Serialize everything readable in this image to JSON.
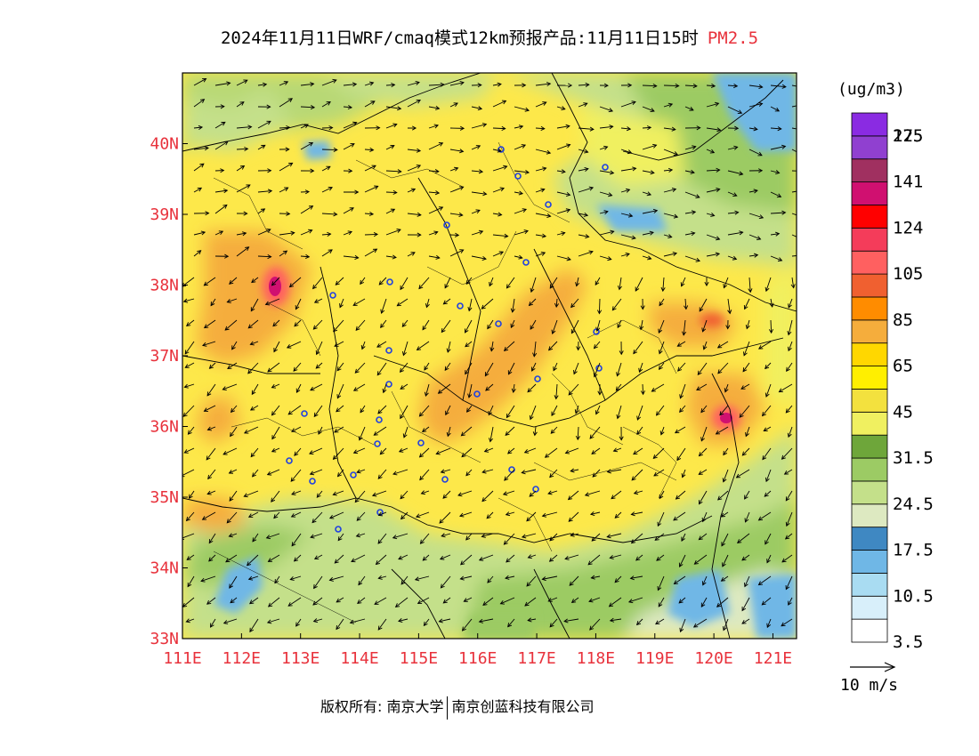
{
  "title": {
    "main": "2024年11月11日WRF/cmaq模式12km预报产品:11月11日15时",
    "pollutant": "PM2.5"
  },
  "map": {
    "lon_min": 111,
    "lon_max": 121.4,
    "lat_min": 33,
    "lat_max": 41,
    "lon_labels": [
      "111E",
      "112E",
      "113E",
      "114E",
      "115E",
      "116E",
      "117E",
      "118E",
      "119E",
      "120E",
      "121E"
    ],
    "lat_labels": [
      "33N",
      "34N",
      "35N",
      "36N",
      "37N",
      "38N",
      "39N",
      "40N"
    ]
  },
  "legend": {
    "units": "(ug/m3)",
    "bins": [
      {
        "color": "#ffffff",
        "label": "3.5"
      },
      {
        "color": "#d8effa",
        "label": ""
      },
      {
        "color": "#a9dcf2",
        "label": "10.5"
      },
      {
        "color": "#6fb7e6",
        "label": ""
      },
      {
        "color": "#3f88c2",
        "label": "17.5"
      },
      {
        "color": "#dde9c1",
        "label": ""
      },
      {
        "color": "#c4e08a",
        "label": "24.5"
      },
      {
        "color": "#9ccb64",
        "label": ""
      },
      {
        "color": "#6ea63a",
        "label": "31.5"
      },
      {
        "color": "#f0f060",
        "label": ""
      },
      {
        "color": "#f3e13e",
        "label": "45"
      },
      {
        "color": "#ffef00",
        "label": ""
      },
      {
        "color": "#ffd700",
        "label": "65"
      },
      {
        "color": "#f5ad3c",
        "label": ""
      },
      {
        "color": "#ff8c00",
        "label": "85"
      },
      {
        "color": "#f06030",
        "label": ""
      },
      {
        "color": "#ff6060",
        "label": "105"
      },
      {
        "color": "#f43c5a",
        "label": ""
      },
      {
        "color": "#ff0000",
        "label": "124"
      },
      {
        "color": "#d01070",
        "label": ""
      },
      {
        "color": "#a03060",
        "label": "141"
      },
      {
        "color": "#9040d0",
        "label": ""
      },
      {
        "color": "#8a2be2",
        "label": "175"
      }
    ],
    "top_label": "225"
  },
  "wind": {
    "reference_speed": "10 m/s"
  },
  "footer": {
    "copyright": "版权所有: 南京大学",
    "company": "南京创蓝科技有限公司"
  },
  "colors": {
    "axis_label": "#e8323c",
    "pollutant_label": "#e8323c"
  }
}
